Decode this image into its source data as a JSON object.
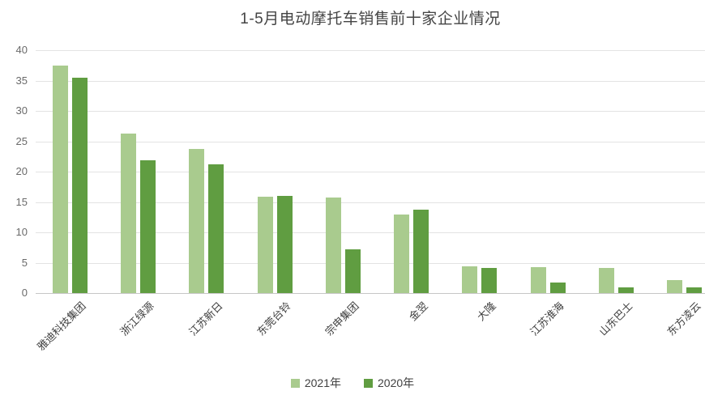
{
  "title": "1-5月电动摩托车销售前十家企业情况",
  "chart_data": {
    "type": "bar",
    "title": "1-5月电动摩托车销售前十家企业情况",
    "categories": [
      "雅迪科技集团",
      "浙江绿源",
      "江苏新日",
      "东莞台铃",
      "宗申集团",
      "金翌",
      "大隆",
      "江苏淮海",
      "山东巴士",
      "东方凌云"
    ],
    "series": [
      {
        "name": "2021年",
        "color": "#a9cb8e",
        "values": [
          37.5,
          26.3,
          23.8,
          15.9,
          15.8,
          13.0,
          4.4,
          4.3,
          4.2,
          2.1
        ]
      },
      {
        "name": "2020年",
        "color": "#609d41",
        "values": [
          35.5,
          21.9,
          21.2,
          16.0,
          7.2,
          13.8,
          4.2,
          1.7,
          1.0,
          1.0
        ]
      }
    ],
    "xlabel": "",
    "ylabel": "",
    "ylim": [
      0,
      40
    ],
    "yticks": [
      0,
      5,
      10,
      15,
      20,
      25,
      30,
      35,
      40
    ],
    "grid": true,
    "legend_position": "bottom"
  },
  "colors": {
    "background": "#ffffff",
    "gridline": "#e3e3e3",
    "axis_line": "#c6c6c6",
    "title_text": "#444444",
    "axis_text": "#6a6a6a",
    "category_text": "#3f3f3f",
    "series_2021": "#a9cb8e",
    "series_2020": "#609d41"
  }
}
